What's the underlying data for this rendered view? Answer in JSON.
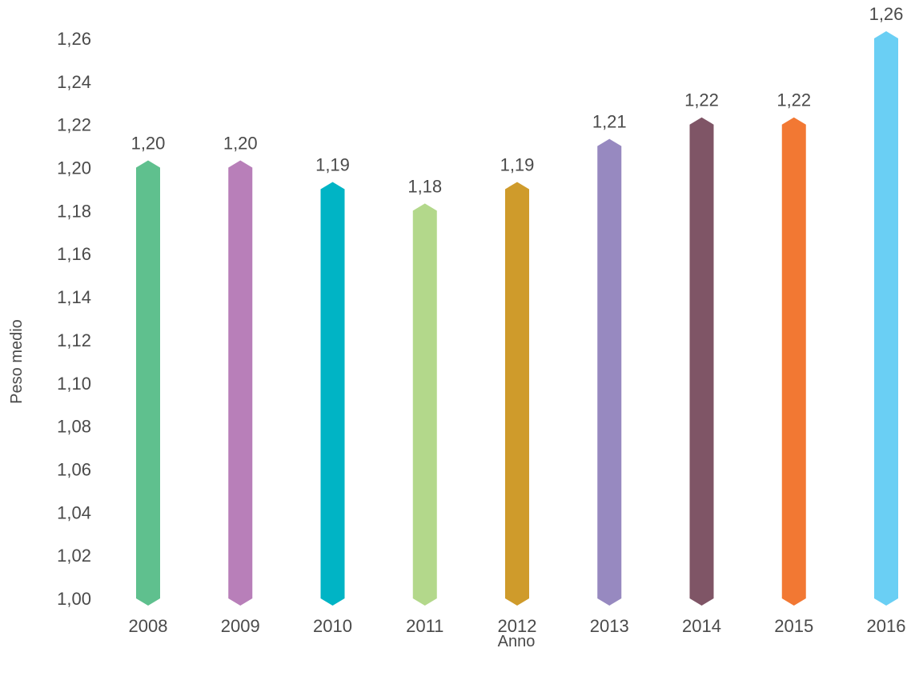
{
  "chart_data": {
    "type": "bar",
    "title": "",
    "xlabel": "Anno",
    "ylabel": "Peso medio",
    "categories": [
      "2008",
      "2009",
      "2010",
      "2011",
      "2012",
      "2013",
      "2014",
      "2015",
      "2016"
    ],
    "values": [
      1.2,
      1.2,
      1.19,
      1.18,
      1.19,
      1.21,
      1.22,
      1.22,
      1.26
    ],
    "value_labels": [
      "1,20",
      "1,20",
      "1,19",
      "1,18",
      "1,19",
      "1,21",
      "1,22",
      "1,22",
      "1,26"
    ],
    "colors": [
      "#5fc08e",
      "#b87fb9",
      "#00b4c5",
      "#b3d88b",
      "#cf9b2b",
      "#9789c0",
      "#7f5566",
      "#f27833",
      "#6acff4"
    ],
    "ylim": [
      1.0,
      1.26
    ],
    "y_ticks": [
      "1,00",
      "1,02",
      "1,04",
      "1,06",
      "1,08",
      "1,10",
      "1,12",
      "1,14",
      "1,16",
      "1,18",
      "1,20",
      "1,22",
      "1,24",
      "1,26"
    ],
    "y_tick_values": [
      1.0,
      1.02,
      1.04,
      1.06,
      1.08,
      1.1,
      1.12,
      1.14,
      1.16,
      1.18,
      1.2,
      1.22,
      1.24,
      1.26
    ],
    "grid": false,
    "legend": "none"
  }
}
